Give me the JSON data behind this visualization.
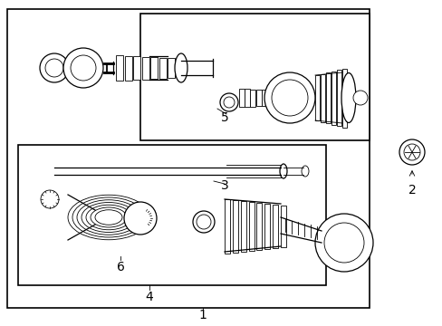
{
  "background_color": "#ffffff",
  "line_color": "#000000",
  "figsize": [
    4.89,
    3.6
  ],
  "dpi": 100,
  "lw_main": 1.2,
  "lw_thin": 0.6,
  "lw_med": 0.9
}
